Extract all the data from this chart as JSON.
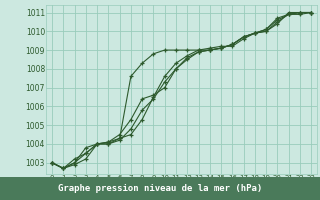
{
  "bg_color": "#cce8e0",
  "plot_bg_color": "#cce8e0",
  "label_bg_color": "#4a7a5a",
  "grid_color": "#99ccbb",
  "line_color": "#2d5a2d",
  "marker_color": "#2d5a2d",
  "xlabel": "Graphe pression niveau de la mer (hPa)",
  "xlabel_color": "#ffffff",
  "ylim": [
    1002.4,
    1011.4
  ],
  "xlim": [
    -0.5,
    23.5
  ],
  "yticks": [
    1003,
    1004,
    1005,
    1006,
    1007,
    1008,
    1009,
    1010,
    1011
  ],
  "xticks": [
    0,
    1,
    2,
    3,
    4,
    5,
    6,
    7,
    8,
    9,
    10,
    11,
    12,
    13,
    14,
    15,
    16,
    17,
    18,
    19,
    20,
    21,
    22,
    23
  ],
  "series": [
    [
      1003.0,
      1002.7,
      1002.9,
      1003.2,
      1004.0,
      1004.1,
      1004.3,
      1004.5,
      1005.3,
      1006.5,
      1007.6,
      1008.3,
      1008.7,
      1009.0,
      1009.1,
      1009.2,
      1009.2,
      1009.6,
      1009.9,
      1010.0,
      1010.4,
      1011.0,
      1011.0,
      1011.0
    ],
    [
      1003.0,
      1002.7,
      1003.0,
      1003.5,
      1004.0,
      1004.0,
      1004.2,
      1004.8,
      1005.8,
      1006.4,
      1007.3,
      1008.0,
      1008.5,
      1008.9,
      1009.0,
      1009.1,
      1009.3,
      1009.7,
      1009.9,
      1010.0,
      1010.5,
      1010.9,
      1010.9,
      1011.0
    ],
    [
      1003.0,
      1002.7,
      1003.0,
      1003.8,
      1004.0,
      1004.1,
      1004.5,
      1005.3,
      1006.4,
      1006.6,
      1007.0,
      1008.0,
      1008.6,
      1008.9,
      1009.0,
      1009.1,
      1009.3,
      1009.7,
      1009.9,
      1010.1,
      1010.6,
      1010.9,
      1011.0,
      1011.0
    ],
    [
      1003.0,
      1002.7,
      1003.2,
      1003.5,
      1004.0,
      1004.0,
      1004.3,
      1007.6,
      1008.3,
      1008.8,
      1009.0,
      1009.0,
      1009.0,
      1009.0,
      1009.0,
      1009.1,
      1009.3,
      1009.7,
      1009.9,
      1010.1,
      1010.7,
      1010.9,
      1011.0,
      1011.0
    ]
  ],
  "tick_fontsize": 5.5,
  "xtick_fontsize": 5.0,
  "xlabel_fontsize": 6.5
}
